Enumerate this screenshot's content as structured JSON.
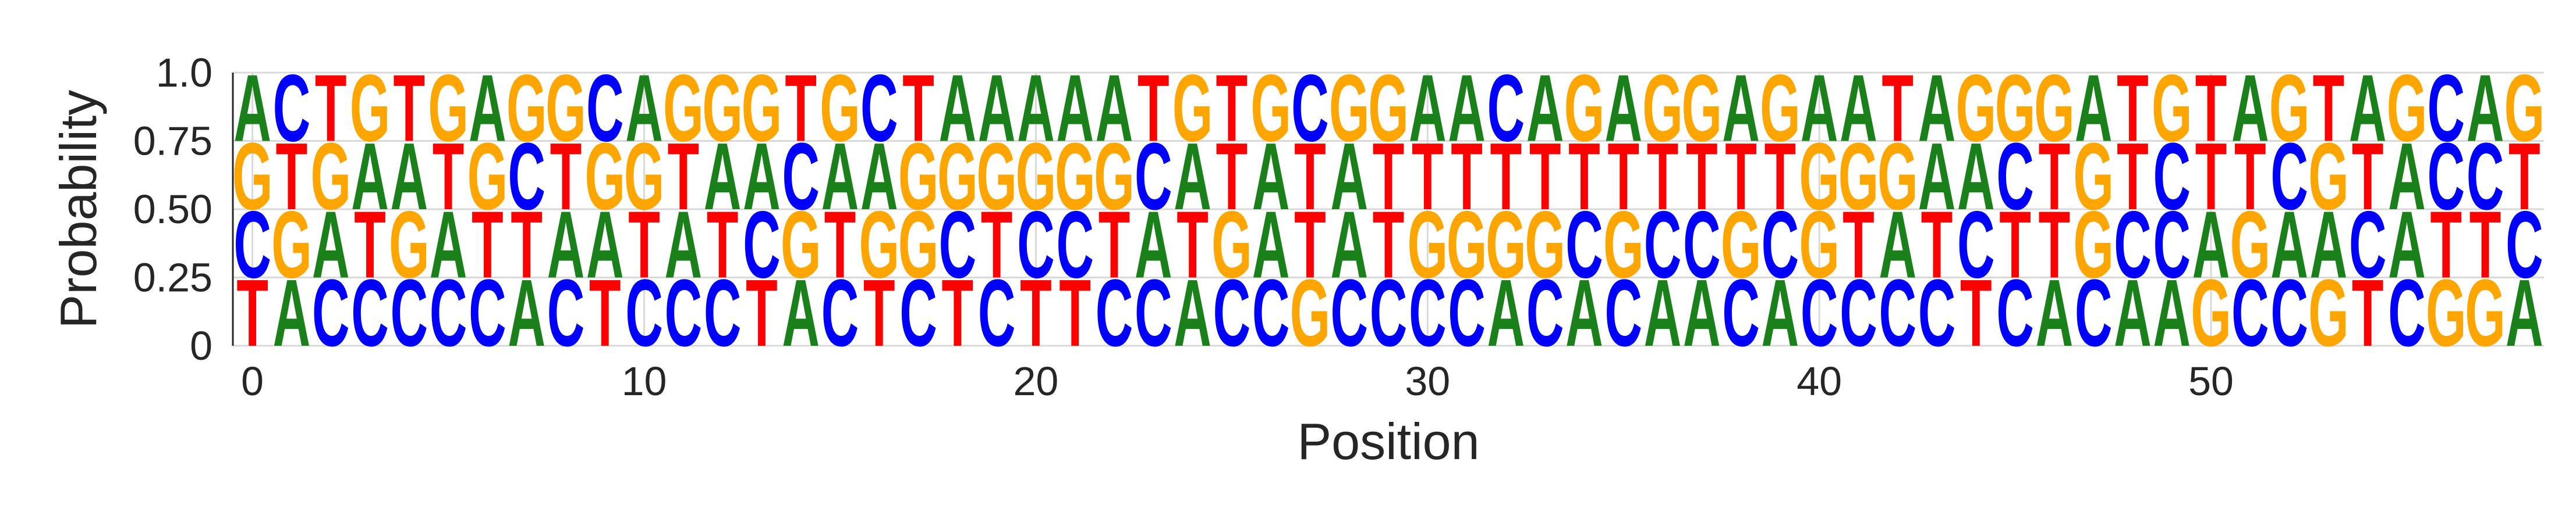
{
  "chart_data": {
    "type": "sequence-logo",
    "title": "",
    "xlabel": "Position",
    "ylabel": "Probability",
    "xlim": [
      -0.5,
      58.5
    ],
    "ylim": [
      0,
      1.0
    ],
    "xticks": [
      0,
      10,
      20,
      30,
      40,
      50
    ],
    "xtick_labels": [
      "0",
      "10",
      "20",
      "30",
      "40",
      "50"
    ],
    "yticks": [
      0,
      0.25,
      0.5,
      0.75,
      1.0
    ],
    "ytick_labels": [
      "0",
      "0.25",
      "0.50",
      "0.75",
      "1.0"
    ],
    "grid": true,
    "colors": {
      "A": "#1a801a",
      "C": "#0000ff",
      "G": "#ffa500",
      "T": "#ff0000"
    },
    "positions": [
      {
        "pos": 0,
        "stack": [
          "T",
          "C",
          "G",
          "A"
        ]
      },
      {
        "pos": 1,
        "stack": [
          "A",
          "G",
          "T",
          "C"
        ]
      },
      {
        "pos": 2,
        "stack": [
          "C",
          "A",
          "G",
          "T"
        ]
      },
      {
        "pos": 3,
        "stack": [
          "C",
          "T",
          "A",
          "G"
        ]
      },
      {
        "pos": 4,
        "stack": [
          "C",
          "G",
          "A",
          "T"
        ]
      },
      {
        "pos": 5,
        "stack": [
          "C",
          "A",
          "T",
          "G"
        ]
      },
      {
        "pos": 6,
        "stack": [
          "C",
          "T",
          "G",
          "A"
        ]
      },
      {
        "pos": 7,
        "stack": [
          "A",
          "T",
          "C",
          "G"
        ]
      },
      {
        "pos": 8,
        "stack": [
          "C",
          "A",
          "T",
          "G"
        ]
      },
      {
        "pos": 9,
        "stack": [
          "T",
          "A",
          "G",
          "C"
        ]
      },
      {
        "pos": 10,
        "stack": [
          "C",
          "T",
          "G",
          "A"
        ]
      },
      {
        "pos": 11,
        "stack": [
          "C",
          "A",
          "T",
          "G"
        ]
      },
      {
        "pos": 12,
        "stack": [
          "C",
          "T",
          "A",
          "G"
        ]
      },
      {
        "pos": 13,
        "stack": [
          "T",
          "C",
          "A",
          "G"
        ]
      },
      {
        "pos": 14,
        "stack": [
          "A",
          "G",
          "C",
          "T"
        ]
      },
      {
        "pos": 15,
        "stack": [
          "C",
          "T",
          "A",
          "G"
        ]
      },
      {
        "pos": 16,
        "stack": [
          "T",
          "G",
          "A",
          "C"
        ]
      },
      {
        "pos": 17,
        "stack": [
          "C",
          "G",
          "G",
          "T"
        ]
      },
      {
        "pos": 18,
        "stack": [
          "T",
          "C",
          "G",
          "A"
        ]
      },
      {
        "pos": 19,
        "stack": [
          "C",
          "T",
          "G",
          "A"
        ]
      },
      {
        "pos": 20,
        "stack": [
          "T",
          "C",
          "G",
          "A"
        ]
      },
      {
        "pos": 21,
        "stack": [
          "T",
          "C",
          "G",
          "A"
        ]
      },
      {
        "pos": 22,
        "stack": [
          "C",
          "T",
          "G",
          "A"
        ]
      },
      {
        "pos": 23,
        "stack": [
          "C",
          "A",
          "C",
          "T"
        ]
      },
      {
        "pos": 24,
        "stack": [
          "A",
          "T",
          "A",
          "G"
        ]
      },
      {
        "pos": 25,
        "stack": [
          "C",
          "G",
          "T",
          "T"
        ]
      },
      {
        "pos": 26,
        "stack": [
          "C",
          "A",
          "A",
          "G"
        ]
      },
      {
        "pos": 27,
        "stack": [
          "G",
          "T",
          "T",
          "C"
        ]
      },
      {
        "pos": 28,
        "stack": [
          "C",
          "A",
          "A",
          "G"
        ]
      },
      {
        "pos": 29,
        "stack": [
          "C",
          "T",
          "T",
          "G"
        ]
      },
      {
        "pos": 30,
        "stack": [
          "C",
          "G",
          "T",
          "A"
        ]
      },
      {
        "pos": 31,
        "stack": [
          "C",
          "G",
          "T",
          "A"
        ]
      },
      {
        "pos": 32,
        "stack": [
          "A",
          "G",
          "T",
          "C"
        ]
      },
      {
        "pos": 33,
        "stack": [
          "C",
          "G",
          "T",
          "A"
        ]
      },
      {
        "pos": 34,
        "stack": [
          "A",
          "C",
          "T",
          "G"
        ]
      },
      {
        "pos": 35,
        "stack": [
          "C",
          "G",
          "T",
          "A"
        ]
      },
      {
        "pos": 36,
        "stack": [
          "A",
          "C",
          "T",
          "G"
        ]
      },
      {
        "pos": 37,
        "stack": [
          "A",
          "C",
          "T",
          "G"
        ]
      },
      {
        "pos": 38,
        "stack": [
          "C",
          "G",
          "T",
          "A"
        ]
      },
      {
        "pos": 39,
        "stack": [
          "A",
          "C",
          "T",
          "G"
        ]
      },
      {
        "pos": 40,
        "stack": [
          "C",
          "G",
          "G",
          "A"
        ]
      },
      {
        "pos": 41,
        "stack": [
          "C",
          "T",
          "G",
          "A"
        ]
      },
      {
        "pos": 42,
        "stack": [
          "C",
          "A",
          "G",
          "T"
        ]
      },
      {
        "pos": 43,
        "stack": [
          "C",
          "T",
          "A",
          "A"
        ]
      },
      {
        "pos": 44,
        "stack": [
          "T",
          "C",
          "A",
          "G"
        ]
      },
      {
        "pos": 45,
        "stack": [
          "C",
          "T",
          "C",
          "G"
        ]
      },
      {
        "pos": 46,
        "stack": [
          "A",
          "T",
          "T",
          "G"
        ]
      },
      {
        "pos": 47,
        "stack": [
          "C",
          "G",
          "G",
          "A"
        ]
      },
      {
        "pos": 48,
        "stack": [
          "A",
          "C",
          "T",
          "T"
        ]
      },
      {
        "pos": 49,
        "stack": [
          "A",
          "C",
          "C",
          "G"
        ]
      },
      {
        "pos": 50,
        "stack": [
          "G",
          "A",
          "T",
          "T"
        ]
      },
      {
        "pos": 51,
        "stack": [
          "C",
          "G",
          "T",
          "A"
        ]
      },
      {
        "pos": 52,
        "stack": [
          "C",
          "A",
          "C",
          "G"
        ]
      },
      {
        "pos": 53,
        "stack": [
          "G",
          "A",
          "G",
          "T"
        ]
      },
      {
        "pos": 54,
        "stack": [
          "T",
          "C",
          "T",
          "A"
        ]
      },
      {
        "pos": 55,
        "stack": [
          "C",
          "A",
          "A",
          "G"
        ]
      },
      {
        "pos": 56,
        "stack": [
          "G",
          "T",
          "C",
          "C"
        ]
      },
      {
        "pos": 57,
        "stack": [
          "G",
          "T",
          "C",
          "A"
        ]
      },
      {
        "pos": 58,
        "stack": [
          "A",
          "C",
          "T",
          "G"
        ]
      }
    ]
  }
}
